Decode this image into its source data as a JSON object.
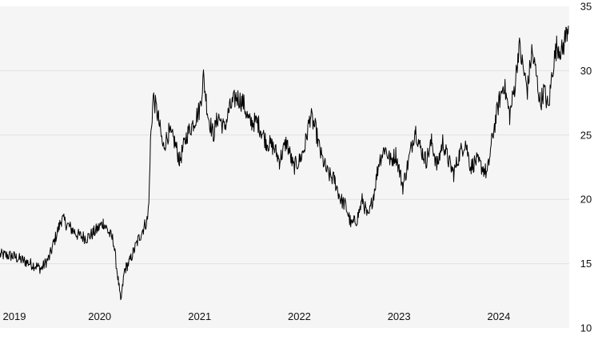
{
  "chart_data": {
    "type": "line",
    "title": "",
    "xlabel": "",
    "ylabel": "",
    "y_axis_position": "right",
    "ylim": [
      10,
      35
    ],
    "y_ticks": [
      10,
      15,
      20,
      25,
      30,
      35
    ],
    "x_tick_labels": [
      "2019",
      "2020",
      "2021",
      "2022",
      "2023",
      "2024"
    ],
    "xlim": [
      "2019-01-01",
      "2024-09-15"
    ],
    "grid": "horizontal",
    "colors": {
      "plot_background": "#f5f5f5",
      "gridline": "#e2e2e2",
      "line": "#000000"
    },
    "series": [
      {
        "x": [
          "2019-01-01",
          "2019-02-15",
          "2019-04-01",
          "2019-05-15",
          "2019-06-01",
          "2019-07-01",
          "2019-07-15",
          "2019-08-15",
          "2019-09-15",
          "2019-10-15",
          "2019-11-15",
          "2019-12-15",
          "2020-01-15",
          "2020-02-01",
          "2020-02-20",
          "2020-03-10",
          "2020-03-18",
          "2020-04-01",
          "2020-04-20",
          "2020-05-20",
          "2020-06-10",
          "2020-06-25",
          "2020-07-01",
          "2020-07-05",
          "2020-07-15",
          "2020-08-01",
          "2020-08-20",
          "2020-09-10",
          "2020-10-01",
          "2020-10-20",
          "2020-11-15",
          "2020-12-10",
          "2021-01-01",
          "2021-01-15",
          "2021-02-01",
          "2021-02-20",
          "2021-03-10",
          "2021-04-01",
          "2021-04-20",
          "2021-05-15",
          "2021-06-10",
          "2021-07-01",
          "2021-08-01",
          "2021-09-01",
          "2021-10-01",
          "2021-10-20",
          "2021-11-15",
          "2021-12-10",
          "2022-01-01",
          "2022-01-20",
          "2022-02-10",
          "2022-03-01",
          "2022-03-20",
          "2022-04-15",
          "2022-05-10",
          "2022-06-01",
          "2022-06-20",
          "2022-07-10",
          "2022-08-01",
          "2022-08-20",
          "2022-09-10",
          "2022-10-01",
          "2022-10-20",
          "2022-11-10",
          "2022-12-01",
          "2022-12-20",
          "2023-01-15",
          "2023-02-10",
          "2023-03-01",
          "2023-03-20",
          "2023-04-10",
          "2023-05-01",
          "2023-05-20",
          "2023-06-10",
          "2023-07-01",
          "2023-07-20",
          "2023-08-10",
          "2023-09-01",
          "2023-09-20",
          "2023-10-10",
          "2023-11-01",
          "2023-11-20",
          "2023-12-10",
          "2024-01-01",
          "2024-01-20",
          "2024-02-10",
          "2024-03-01",
          "2024-03-15",
          "2024-04-01",
          "2024-04-15",
          "2024-05-01",
          "2024-05-15",
          "2024-06-01",
          "2024-06-15",
          "2024-07-01",
          "2024-07-15",
          "2024-08-01",
          "2024-08-20",
          "2024-09-05",
          "2024-09-12"
        ],
        "values": [
          15.7,
          15.6,
          15.2,
          14.8,
          14.6,
          15.5,
          16.5,
          18.5,
          17.8,
          17.2,
          17.0,
          17.5,
          18.2,
          17.5,
          16.8,
          13.5,
          12.0,
          14.5,
          15.2,
          16.8,
          17.8,
          18.5,
          21.0,
          24.5,
          28.0,
          26.5,
          24.0,
          25.2,
          24.5,
          23.0,
          25.0,
          26.0,
          27.0,
          29.5,
          26.5,
          25.0,
          26.5,
          25.5,
          27.0,
          28.0,
          27.5,
          26.0,
          26.0,
          24.5,
          24.0,
          23.0,
          24.5,
          22.5,
          23.0,
          24.0,
          26.5,
          25.5,
          23.5,
          22.0,
          21.5,
          20.0,
          19.5,
          18.0,
          18.5,
          20.0,
          18.5,
          20.5,
          23.0,
          24.0,
          23.0,
          23.5,
          21.0,
          23.5,
          25.5,
          24.0,
          23.0,
          24.5,
          22.5,
          24.5,
          23.0,
          22.0,
          23.5,
          24.5,
          22.5,
          23.0,
          22.5,
          22.0,
          25.0,
          27.5,
          29.0,
          26.5,
          29.0,
          32.0,
          30.0,
          28.5,
          31.5,
          30.0,
          27.5,
          28.5,
          27.0,
          30.0,
          32.0,
          31.5,
          33.0,
          33.5
        ]
      }
    ]
  }
}
